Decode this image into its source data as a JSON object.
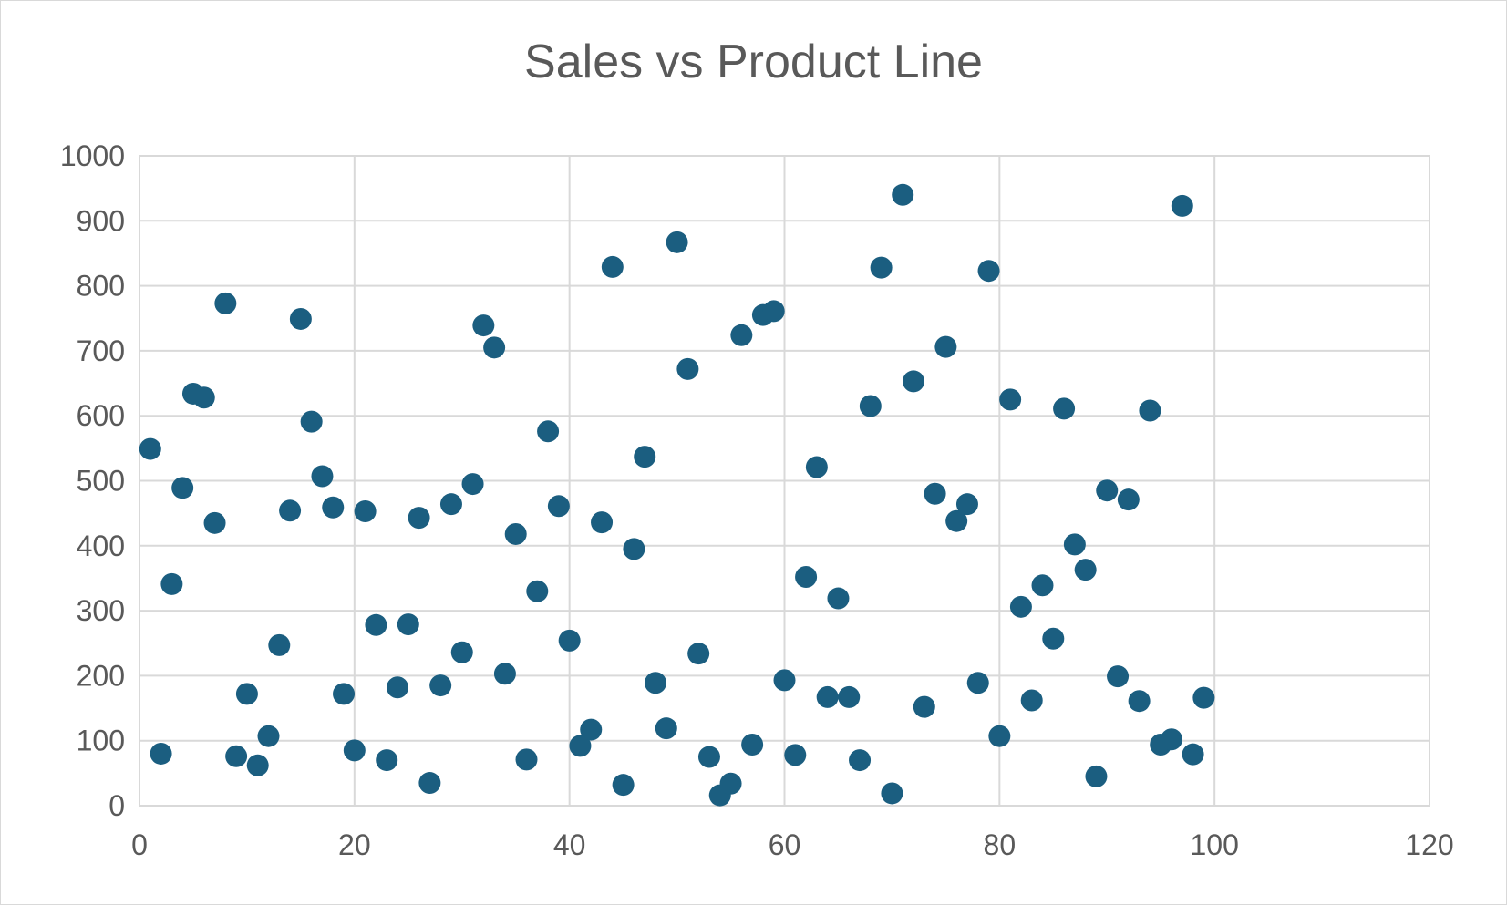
{
  "chart_data": {
    "type": "scatter",
    "title": "Sales vs Product Line",
    "xlabel": "",
    "ylabel": "",
    "xlim": [
      0,
      120
    ],
    "ylim": [
      0,
      1000
    ],
    "x_ticks": [
      "0",
      "20",
      "40",
      "60",
      "80",
      "100",
      "120"
    ],
    "y_ticks": [
      "0",
      "100",
      "200",
      "300",
      "400",
      "500",
      "600",
      "700",
      "800",
      "900",
      "1000"
    ],
    "grid": true,
    "legend": "none",
    "marker_color": "#1b5e80",
    "series": [
      {
        "x": [
          1,
          2,
          3,
          4,
          5,
          6,
          7,
          8,
          9,
          10,
          11,
          12,
          13,
          14,
          15,
          16,
          17,
          18,
          19,
          20,
          21,
          22,
          23,
          24,
          25,
          26,
          27,
          28,
          29,
          30,
          31,
          32,
          33,
          34,
          35,
          36,
          37,
          38,
          39,
          40,
          41,
          42,
          43,
          44,
          45,
          46,
          47,
          48,
          49,
          50,
          51,
          52,
          53,
          54,
          55,
          56,
          57,
          58,
          59,
          60,
          61,
          62,
          63,
          64,
          65,
          66,
          67,
          68,
          69,
          70,
          71,
          72,
          73,
          74,
          75,
          76,
          77,
          78,
          79,
          80,
          81,
          82,
          83,
          84,
          85,
          86,
          87,
          88,
          89,
          90,
          91,
          92,
          93,
          94,
          95,
          96,
          97,
          98,
          99
        ],
        "y": [
          549,
          80,
          341,
          489,
          634,
          628,
          435,
          773,
          76,
          172,
          62,
          107,
          247,
          454,
          749,
          591,
          507,
          459,
          172,
          85,
          453,
          278,
          70,
          182,
          279,
          443,
          35,
          185,
          464,
          236,
          495,
          739,
          705,
          203,
          418,
          71,
          330,
          576,
          461,
          254,
          92,
          117,
          436,
          829,
          32,
          395,
          537,
          189,
          119,
          867,
          672,
          234,
          75,
          16,
          34,
          724,
          94,
          755,
          761,
          193,
          78,
          352,
          521,
          167,
          319,
          167,
          70,
          615,
          828,
          19,
          940,
          653,
          152,
          480,
          706,
          438,
          464,
          189,
          823,
          107,
          625,
          306,
          162,
          339,
          257,
          611,
          402,
          363,
          45,
          485,
          199,
          471,
          161,
          608,
          94,
          102,
          923,
          79,
          166
        ]
      }
    ]
  }
}
